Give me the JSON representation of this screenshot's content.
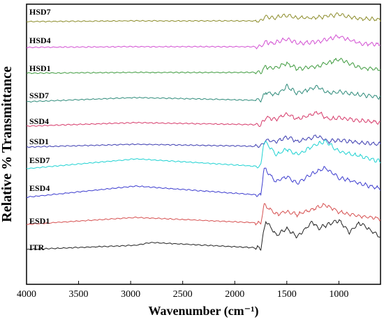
{
  "chart_data": {
    "type": "line",
    "title": "",
    "xlabel": "Wavenumber (cm⁻¹)",
    "ylabel": "Relative % Transmittance",
    "xlim": [
      4000,
      600
    ],
    "x_reversed": true,
    "x_ticks": [
      4000,
      3500,
      3000,
      2500,
      2000,
      1500,
      1000
    ],
    "y_ticks_shown": false,
    "legend": "none",
    "grid": false,
    "series": [
      {
        "name": "HSD7",
        "color": "#8c8c2a",
        "baseline": 0.0,
        "x": [
          4000,
          3000,
          1750,
          1700,
          1650,
          1500,
          1400,
          1200,
          1000,
          800,
          600
        ],
        "values": [
          0,
          -1,
          -1,
          -8,
          -5,
          -9,
          -5,
          -6,
          -10,
          -4,
          -3
        ]
      },
      {
        "name": "HSD4",
        "color": "#d24fd2",
        "baseline": 0.0,
        "x": [
          4000,
          3000,
          1750,
          1700,
          1650,
          1500,
          1400,
          1200,
          1000,
          800,
          600
        ],
        "values": [
          0,
          -1,
          -1,
          -9,
          -5,
          -12,
          -6,
          -8,
          -16,
          -6,
          -4
        ]
      },
      {
        "name": "HSD1",
        "color": "#3f9b3f",
        "baseline": 0.0,
        "x": [
          4000,
          3000,
          1750,
          1700,
          1650,
          1500,
          1400,
          1200,
          1000,
          800,
          600
        ],
        "values": [
          0,
          -1,
          -1,
          -10,
          -6,
          -14,
          -6,
          -10,
          -20,
          -8,
          -5
        ]
      },
      {
        "name": "SSD7",
        "color": "#2e8b7a",
        "baseline": 0.0,
        "x": [
          4000,
          2950,
          1750,
          1700,
          1600,
          1500,
          1400,
          1200,
          1100,
          1000,
          800,
          600
        ],
        "values": [
          0,
          -6,
          -2,
          -14,
          -10,
          -22,
          -12,
          -22,
          -12,
          -14,
          -10,
          -6
        ]
      },
      {
        "name": "SSD4",
        "color": "#d63a6a",
        "baseline": 0.0,
        "x": [
          4000,
          2950,
          1750,
          1700,
          1600,
          1500,
          1400,
          1200,
          1100,
          1000,
          800,
          600
        ],
        "values": [
          0,
          -5,
          -2,
          -12,
          -10,
          -18,
          -10,
          -20,
          -10,
          -12,
          -8,
          -5
        ]
      },
      {
        "name": "SSD1",
        "color": "#3b3bb0",
        "baseline": 0.0,
        "x": [
          4000,
          2950,
          1750,
          1700,
          1600,
          1500,
          1400,
          1200,
          1100,
          1000,
          800,
          600
        ],
        "values": [
          0,
          -4,
          -1,
          -10,
          -8,
          -14,
          -8,
          -16,
          -8,
          -10,
          -6,
          -4
        ]
      },
      {
        "name": "ESD7",
        "color": "#1fd2d2",
        "baseline": 0.0,
        "x": [
          4000,
          2950,
          1750,
          1720,
          1600,
          1500,
          1400,
          1250,
          1130,
          1000,
          800,
          600
        ],
        "values": [
          0,
          -14,
          -3,
          -40,
          -20,
          -28,
          -20,
          -32,
          -40,
          -25,
          -18,
          -10
        ]
      },
      {
        "name": "ESD4",
        "color": "#3d3dcf",
        "baseline": 0.0,
        "x": [
          4000,
          2950,
          1750,
          1720,
          1600,
          1500,
          1400,
          1250,
          1130,
          1000,
          800,
          600
        ],
        "values": [
          0,
          -16,
          -3,
          -42,
          -22,
          -30,
          -20,
          -34,
          -42,
          -28,
          -20,
          -12
        ]
      },
      {
        "name": "ESD1",
        "color": "#d65050",
        "baseline": 0.0,
        "x": [
          4000,
          2950,
          1750,
          1720,
          1600,
          1500,
          1400,
          1250,
          1130,
          1000,
          800,
          600
        ],
        "values": [
          0,
          -10,
          -2,
          -28,
          -14,
          -18,
          -14,
          -22,
          -28,
          -18,
          -12,
          -8
        ]
      },
      {
        "name": "ITR",
        "color": "#222222",
        "baseline": 0.0,
        "x": [
          4000,
          2950,
          2800,
          1750,
          1700,
          1600,
          1500,
          1400,
          1250,
          1200,
          1100,
          1000,
          900,
          800,
          700,
          600
        ],
        "values": [
          0,
          -6,
          -10,
          -2,
          -42,
          -20,
          -30,
          -18,
          -40,
          -30,
          -36,
          -42,
          -25,
          -38,
          -28,
          -18
        ]
      }
    ]
  }
}
